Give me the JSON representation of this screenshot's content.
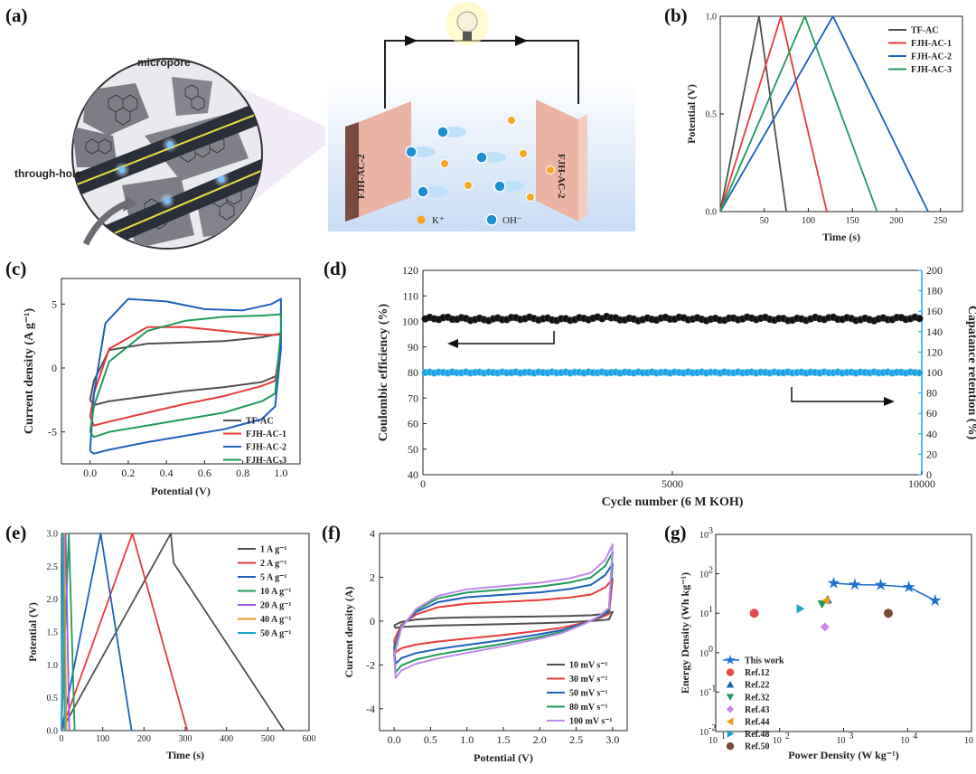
{
  "panel_labels": [
    "(a)",
    "(b)",
    "(c)",
    "(d)",
    "(e)",
    "(f)",
    "(g)"
  ],
  "schematic": {
    "micropore_label": "micropore",
    "through_hole_label": "through-hole",
    "left_electrode": "FJH-AC-2",
    "right_electrode": "FJH-AC-2",
    "k_label": "K⁺",
    "oh_label": "OH⁻",
    "colors": {
      "electrode": "#eab3a4",
      "electrolyte_top": "#ffffff",
      "electrolyte_bottom": "#c9dcf5",
      "k_ion": "#f5a623",
      "oh_ion": "#1e8fd1"
    }
  },
  "chart_data": [
    {
      "id": "b",
      "type": "line",
      "xlabel": "Time (s)",
      "ylabel": "Potential (V)",
      "xlim": [
        0,
        275
      ],
      "ylim": [
        0,
        1.0
      ],
      "xticks": [
        "50",
        "100",
        "150",
        "200",
        "250"
      ],
      "yticks": [
        "0.0",
        "0.5",
        "1.0"
      ],
      "series": [
        {
          "name": "TF-AC",
          "color": "#505050",
          "x": [
            0,
            44,
            75
          ],
          "y": [
            0,
            1.0,
            0
          ]
        },
        {
          "name": "FJH-AC-1",
          "color": "#e83a3a",
          "x": [
            0,
            69,
            121
          ],
          "y": [
            0,
            1.0,
            0
          ]
        },
        {
          "name": "FJH-AC-2",
          "color": "#1f5fbf",
          "x": [
            0,
            128,
            236
          ],
          "y": [
            0,
            1.0,
            0
          ]
        },
        {
          "name": "FJH-AC-3",
          "color": "#1f9a5a",
          "x": [
            0,
            96,
            178
          ],
          "y": [
            0,
            1.0,
            0
          ]
        }
      ],
      "legend": "top-right"
    },
    {
      "id": "c",
      "type": "line",
      "xlabel": "Potential (V)",
      "ylabel": "Current density (A g⁻¹)",
      "xlim": [
        -0.15,
        1.1
      ],
      "ylim": [
        -7.5,
        7.0
      ],
      "xticks": [
        "0.0",
        "0.2",
        "0.4",
        "0.6",
        "0.8",
        "1.0"
      ],
      "yticks": [
        "-5",
        "0",
        "5"
      ],
      "series": [
        {
          "name": "TF-AC",
          "color": "#505050",
          "x": [
            0,
            0.02,
            0.1,
            0.3,
            0.5,
            0.7,
            0.9,
            1.0,
            1.0,
            0.98,
            0.9,
            0.7,
            0.5,
            0.3,
            0.1,
            0.02,
            0
          ],
          "y": [
            -2.5,
            -1.0,
            1.4,
            1.9,
            2.0,
            2.1,
            2.4,
            2.7,
            2.2,
            -0.6,
            -1.1,
            -1.5,
            -1.8,
            -2.2,
            -2.6,
            -2.9,
            -2.5
          ]
        },
        {
          "name": "FJH-AC-1",
          "color": "#e83a3a",
          "x": [
            0,
            0.02,
            0.1,
            0.3,
            0.5,
            0.7,
            0.9,
            1.0,
            1.0,
            0.97,
            0.9,
            0.7,
            0.5,
            0.3,
            0.1,
            0.02,
            0
          ],
          "y": [
            -3.8,
            -2.0,
            1.5,
            3.2,
            3.2,
            2.9,
            2.6,
            2.6,
            2.2,
            -1.0,
            -1.4,
            -2.2,
            -2.8,
            -3.5,
            -4.2,
            -4.5,
            -3.8
          ]
        },
        {
          "name": "FJH-AC-2",
          "color": "#1f5fbf",
          "x": [
            0,
            0.02,
            0.08,
            0.2,
            0.4,
            0.6,
            0.8,
            0.95,
            1.0,
            1.0,
            0.97,
            0.9,
            0.7,
            0.5,
            0.3,
            0.1,
            0.02,
            0
          ],
          "y": [
            -6.5,
            -2.0,
            3.5,
            5.4,
            5.2,
            4.6,
            4.5,
            5.0,
            5.4,
            1.5,
            -3.0,
            -4.0,
            -4.8,
            -5.3,
            -5.8,
            -6.4,
            -6.7,
            -6.5
          ]
        },
        {
          "name": "FJH-AC-3",
          "color": "#1f9a5a",
          "x": [
            0,
            0.02,
            0.1,
            0.3,
            0.5,
            0.7,
            0.9,
            1.0,
            1.0,
            0.97,
            0.9,
            0.7,
            0.5,
            0.3,
            0.1,
            0.02,
            0
          ],
          "y": [
            -5.0,
            -3.0,
            0.5,
            2.9,
            3.7,
            4.0,
            4.1,
            4.2,
            3.0,
            -2.0,
            -2.6,
            -3.5,
            -4.0,
            -4.5,
            -5.0,
            -5.4,
            -5.0
          ]
        }
      ],
      "legend": "bottom-right"
    },
    {
      "id": "d",
      "type": "scatter",
      "xlabel": "Cycle number (6 M KOH)",
      "ylabel": "Coulombic efficiency (%)",
      "ylabel_right": "Capatance retention (%)",
      "xlim": [
        0,
        10000
      ],
      "ylim": [
        40,
        120
      ],
      "ylim_right": [
        0,
        200
      ],
      "xticks": [
        "0",
        "5000",
        "10000"
      ],
      "yticks": [
        "40",
        "50",
        "60",
        "70",
        "80",
        "90",
        "100",
        "110",
        "120"
      ],
      "yticks_right": [
        "0",
        "20",
        "40",
        "60",
        "80",
        "100",
        "120",
        "140",
        "160",
        "180",
        "200"
      ],
      "series": [
        {
          "name": "Coulombic efficiency",
          "axis": "left",
          "color": "#111111",
          "n_points": 110,
          "value_mean": 101,
          "range": [
            100.2,
            102.5
          ]
        },
        {
          "name": "Capacitance retention",
          "axis": "right",
          "color": "#1aa3e8",
          "n_points": 110,
          "value_mean": 100,
          "range": [
            99.3,
            101.0
          ]
        }
      ],
      "colors": {
        "right_axis": "#1aa3e8"
      }
    },
    {
      "id": "e",
      "type": "line",
      "xlabel": "Time (s)",
      "ylabel": "Potential (V)",
      "xlim": [
        0,
        600
      ],
      "ylim": [
        0,
        3.0
      ],
      "xticks": [
        "0",
        "100",
        "200",
        "300",
        "400",
        "500",
        "600"
      ],
      "yticks": [
        "0.0",
        "0.5",
        "1.0",
        "1.5",
        "2.0",
        "2.5",
        "3.0"
      ],
      "series": [
        {
          "name": "1 A g⁻¹",
          "color": "#505050",
          "x": [
            0,
            265,
            272,
            540
          ],
          "y": [
            0,
            3.0,
            2.55,
            0
          ]
        },
        {
          "name": "2 A g⁻¹",
          "color": "#e83a3a",
          "x": [
            0,
            172,
            305
          ],
          "y": [
            0,
            3.0,
            0
          ]
        },
        {
          "name": "5 A g⁻¹",
          "color": "#1f5fbf",
          "x": [
            0,
            95,
            170
          ],
          "y": [
            0,
            3.0,
            0
          ]
        },
        {
          "name": "10 A g⁻¹",
          "color": "#1f9a5a",
          "x": [
            0,
            18,
            32
          ],
          "y": [
            0,
            3.0,
            0
          ]
        },
        {
          "name": "20 A g⁻¹",
          "color": "#9c5bd6",
          "x": [
            0,
            10,
            19
          ],
          "y": [
            0,
            3.0,
            0
          ]
        },
        {
          "name": "40 A g⁻¹",
          "color": "#e89a1a",
          "x": [
            0,
            6,
            12
          ],
          "y": [
            0,
            3.0,
            0
          ]
        },
        {
          "name": "50 A  g⁻¹",
          "color": "#1aa8c8",
          "x": [
            0,
            4,
            8
          ],
          "y": [
            0,
            3.0,
            0
          ]
        }
      ],
      "legend": "top-right"
    },
    {
      "id": "f",
      "type": "line",
      "xlabel": "Potential (V)",
      "ylabel": "Current density (A)",
      "xlim": [
        -0.2,
        3.2
      ],
      "ylim": [
        -5.0,
        4.0
      ],
      "xticks": [
        "0.0",
        "0.5",
        "1.0",
        "1.5",
        "2.0",
        "2.5",
        "3.0"
      ],
      "yticks": [
        "-4",
        "-2",
        "0",
        "2",
        "4"
      ],
      "series": [
        {
          "name": "10 mV s⁻¹",
          "color": "#505050",
          "scale": 0.12
        },
        {
          "name": "30 mV s⁻¹",
          "color": "#e83a3a",
          "scale": 0.55
        },
        {
          "name": "50 mV s⁻¹",
          "color": "#1f5fbf",
          "scale": 0.75
        },
        {
          "name": "80 mV s⁻¹",
          "color": "#1f9a5a",
          "scale": 0.9
        },
        {
          "name": "100 mV s⁻¹",
          "color": "#c08ae8",
          "scale": 1.0
        }
      ],
      "shape_upper": {
        "x": [
          0,
          0.1,
          0.3,
          0.6,
          1.0,
          1.5,
          2.0,
          2.4,
          2.7,
          2.9,
          3.0
        ],
        "y": [
          -1.6,
          -0.3,
          0.55,
          1.15,
          1.45,
          1.6,
          1.75,
          1.95,
          2.2,
          2.8,
          3.5
        ]
      },
      "shape_lower": {
        "x": [
          3.0,
          2.95,
          2.8,
          2.6,
          2.3,
          2.0,
          1.5,
          1.0,
          0.6,
          0.3,
          0.1,
          0.02,
          0
        ],
        "y": [
          3.5,
          0.6,
          0.2,
          -0.15,
          -0.55,
          -0.8,
          -1.15,
          -1.45,
          -1.7,
          -1.95,
          -2.25,
          -2.6,
          -1.6
        ]
      },
      "legend": "bottom-right"
    },
    {
      "id": "g",
      "type": "scatter",
      "xlabel": "Power Density (W kg⁻¹)",
      "ylabel": "Energy Density (Wh kg⁻¹)",
      "xscale": "log",
      "yscale": "log",
      "xlim": [
        10,
        100000
      ],
      "ylim": [
        0.01,
        1000
      ],
      "xtick_exponents": [
        "1",
        "2",
        "3",
        "4",
        "5"
      ],
      "ytick_exponents": [
        "-2",
        "-1",
        "0",
        "1",
        "2",
        "3"
      ],
      "series": [
        {
          "name": "This work",
          "marker": "star",
          "color": "#1f6fd0",
          "line": true,
          "x": [
            700,
            1500,
            3800,
            10500,
            27000
          ],
          "y": [
            58,
            53,
            52,
            46,
            21
          ]
        },
        {
          "name": "Ref.12",
          "marker": "circle",
          "color": "#e84a4a",
          "x": [
            40
          ],
          "y": [
            10
          ]
        },
        {
          "name": "Ref.22",
          "marker": "triangle-up",
          "color": "#1f5fbf",
          "x": [
            560
          ],
          "y": [
            22
          ]
        },
        {
          "name": "Ref.32",
          "marker": "triangle-down",
          "color": "#1f9a5a",
          "x": [
            460
          ],
          "y": [
            17
          ]
        },
        {
          "name": "Ref.43",
          "marker": "diamond",
          "color": "#c98be8",
          "x": [
            510
          ],
          "y": [
            4.5
          ]
        },
        {
          "name": "Ref.44",
          "marker": "triangle-left",
          "color": "#e89a1a",
          "x": [
            530
          ],
          "y": [
            21
          ]
        },
        {
          "name": "Ref.48",
          "marker": "triangle-right",
          "color": "#1aa8c8",
          "x": [
            210
          ],
          "y": [
            13
          ]
        },
        {
          "name": "Ref.50",
          "marker": "circle",
          "color": "#7a4a3a",
          "x": [
            5000
          ],
          "y": [
            10
          ]
        }
      ],
      "legend": "bottom-left"
    }
  ]
}
